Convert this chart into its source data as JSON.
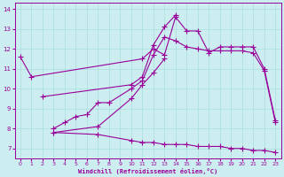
{
  "background_color": "#cceef0",
  "grid_color": "#aadddd",
  "line_color": "#990099",
  "xlabel": "Windchill (Refroidissement éolien,°C)",
  "xlim": [
    -0.5,
    23.5
  ],
  "ylim": [
    6.5,
    14.3
  ],
  "yticks": [
    7,
    8,
    9,
    10,
    11,
    12,
    13,
    14
  ],
  "xticks": [
    0,
    1,
    2,
    3,
    4,
    5,
    6,
    7,
    8,
    9,
    10,
    11,
    12,
    13,
    14,
    15,
    16,
    17,
    18,
    19,
    20,
    21,
    22,
    23
  ],
  "curves": [
    {
      "x": [
        0,
        1,
        11,
        12,
        13,
        14,
        15,
        16,
        17,
        18,
        19,
        20,
        21,
        22,
        23
      ],
      "y": [
        11.6,
        10.6,
        11.5,
        12.0,
        11.7,
        13.6,
        12.9,
        12.9,
        11.8,
        12.1,
        12.1,
        12.1,
        12.1,
        11.0,
        8.4
      ]
    },
    {
      "x": [
        2,
        10,
        11,
        12,
        13,
        14
      ],
      "y": [
        9.6,
        10.2,
        10.6,
        12.2,
        13.1,
        13.7
      ]
    },
    {
      "x": [
        3,
        4,
        5,
        6,
        7,
        8,
        10,
        11,
        12,
        13,
        14,
        15,
        16,
        17,
        18,
        19,
        20,
        21,
        22,
        23
      ],
      "y": [
        8.0,
        8.3,
        8.6,
        8.7,
        9.3,
        9.3,
        10.0,
        10.4,
        11.7,
        12.6,
        12.4,
        12.1,
        12.0,
        11.9,
        11.9,
        11.9,
        11.9,
        11.8,
        10.9,
        8.3
      ]
    },
    {
      "x": [
        3,
        7,
        10,
        11,
        12,
        13
      ],
      "y": [
        7.8,
        8.1,
        9.5,
        10.2,
        10.8,
        11.5
      ]
    },
    {
      "x": [
        3,
        7,
        10,
        11,
        12,
        13,
        14,
        15,
        16,
        17,
        18,
        19,
        20,
        21,
        22,
        23
      ],
      "y": [
        7.8,
        7.7,
        7.4,
        7.3,
        7.3,
        7.2,
        7.2,
        7.2,
        7.1,
        7.1,
        7.1,
        7.0,
        7.0,
        6.9,
        6.9,
        6.8
      ]
    }
  ]
}
